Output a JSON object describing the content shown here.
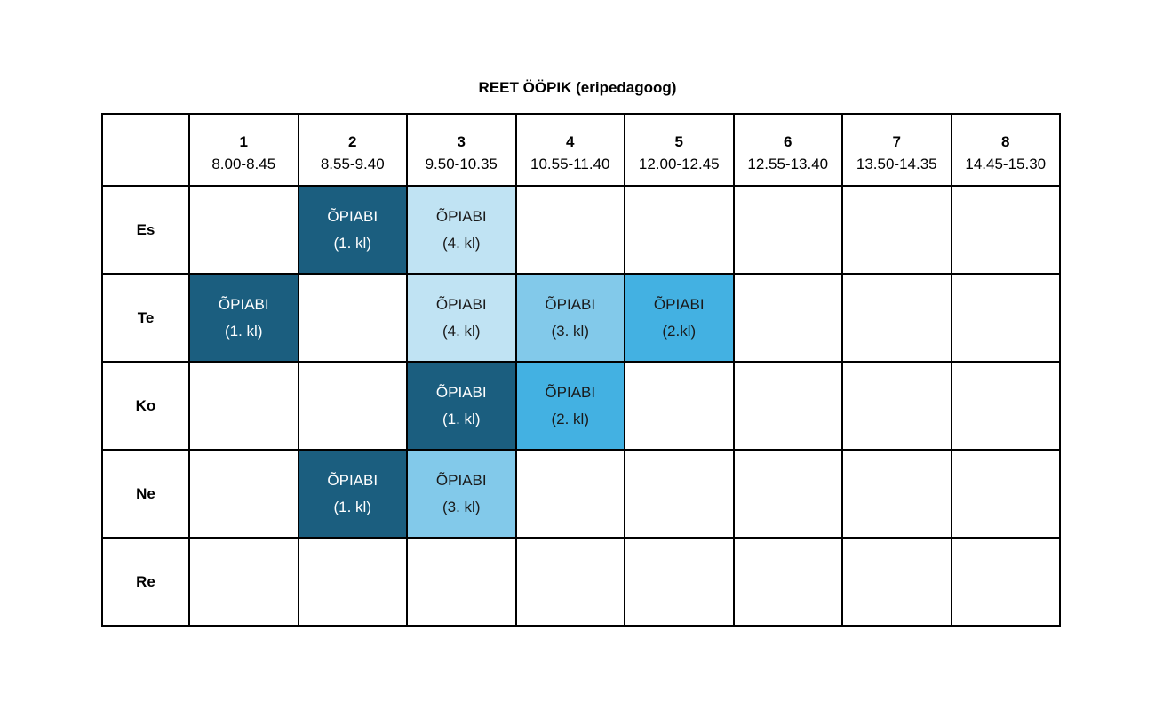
{
  "title": "REET ÖÖPIK (eripedagoog)",
  "periods": [
    {
      "num": "1",
      "time": "8.00-8.45"
    },
    {
      "num": "2",
      "time": "8.55-9.40"
    },
    {
      "num": "3",
      "time": "9.50-10.35"
    },
    {
      "num": "4",
      "time": "10.55-11.40"
    },
    {
      "num": "5",
      "time": "12.00-12.45"
    },
    {
      "num": "6",
      "time": "12.55-13.40"
    },
    {
      "num": "7",
      "time": "13.50-14.35"
    },
    {
      "num": "8",
      "time": "14.45-15.30"
    }
  ],
  "colors": {
    "dark": "#1b5e7f",
    "light": "#c0e3f3",
    "mid": "#82c9ea",
    "bright": "#43b1e2"
  },
  "days": [
    {
      "label": "Es",
      "cells": [
        null,
        {
          "title": "ÕPIABI",
          "sub": "(1. kl)",
          "color": "dark"
        },
        {
          "title": "ÕPIABI",
          "sub": "(4. kl)",
          "color": "light"
        },
        null,
        null,
        null,
        null,
        null
      ]
    },
    {
      "label": "Te",
      "cells": [
        {
          "title": "ÕPIABI",
          "sub": "(1. kl)",
          "color": "dark"
        },
        null,
        {
          "title": "ÕPIABI",
          "sub": "(4. kl)",
          "color": "light"
        },
        {
          "title": "ÕPIABI",
          "sub": "(3. kl)",
          "color": "mid"
        },
        {
          "title": "ÕPIABI",
          "sub": "(2.kl)",
          "color": "bright"
        },
        null,
        null,
        null
      ]
    },
    {
      "label": "Ko",
      "cells": [
        null,
        null,
        {
          "title": "ÕPIABI",
          "sub": "(1. kl)",
          "color": "dark"
        },
        {
          "title": "ÕPIABI",
          "sub": "(2. kl)",
          "color": "bright"
        },
        null,
        null,
        null,
        null
      ]
    },
    {
      "label": "Ne",
      "cells": [
        null,
        {
          "title": "ÕPIABI",
          "sub": "(1. kl)",
          "color": "dark"
        },
        {
          "title": "ÕPIABI",
          "sub": "(3. kl)",
          "color": "mid"
        },
        null,
        null,
        null,
        null,
        null
      ]
    },
    {
      "label": "Re",
      "cells": [
        null,
        null,
        null,
        null,
        null,
        null,
        null,
        null
      ]
    }
  ]
}
